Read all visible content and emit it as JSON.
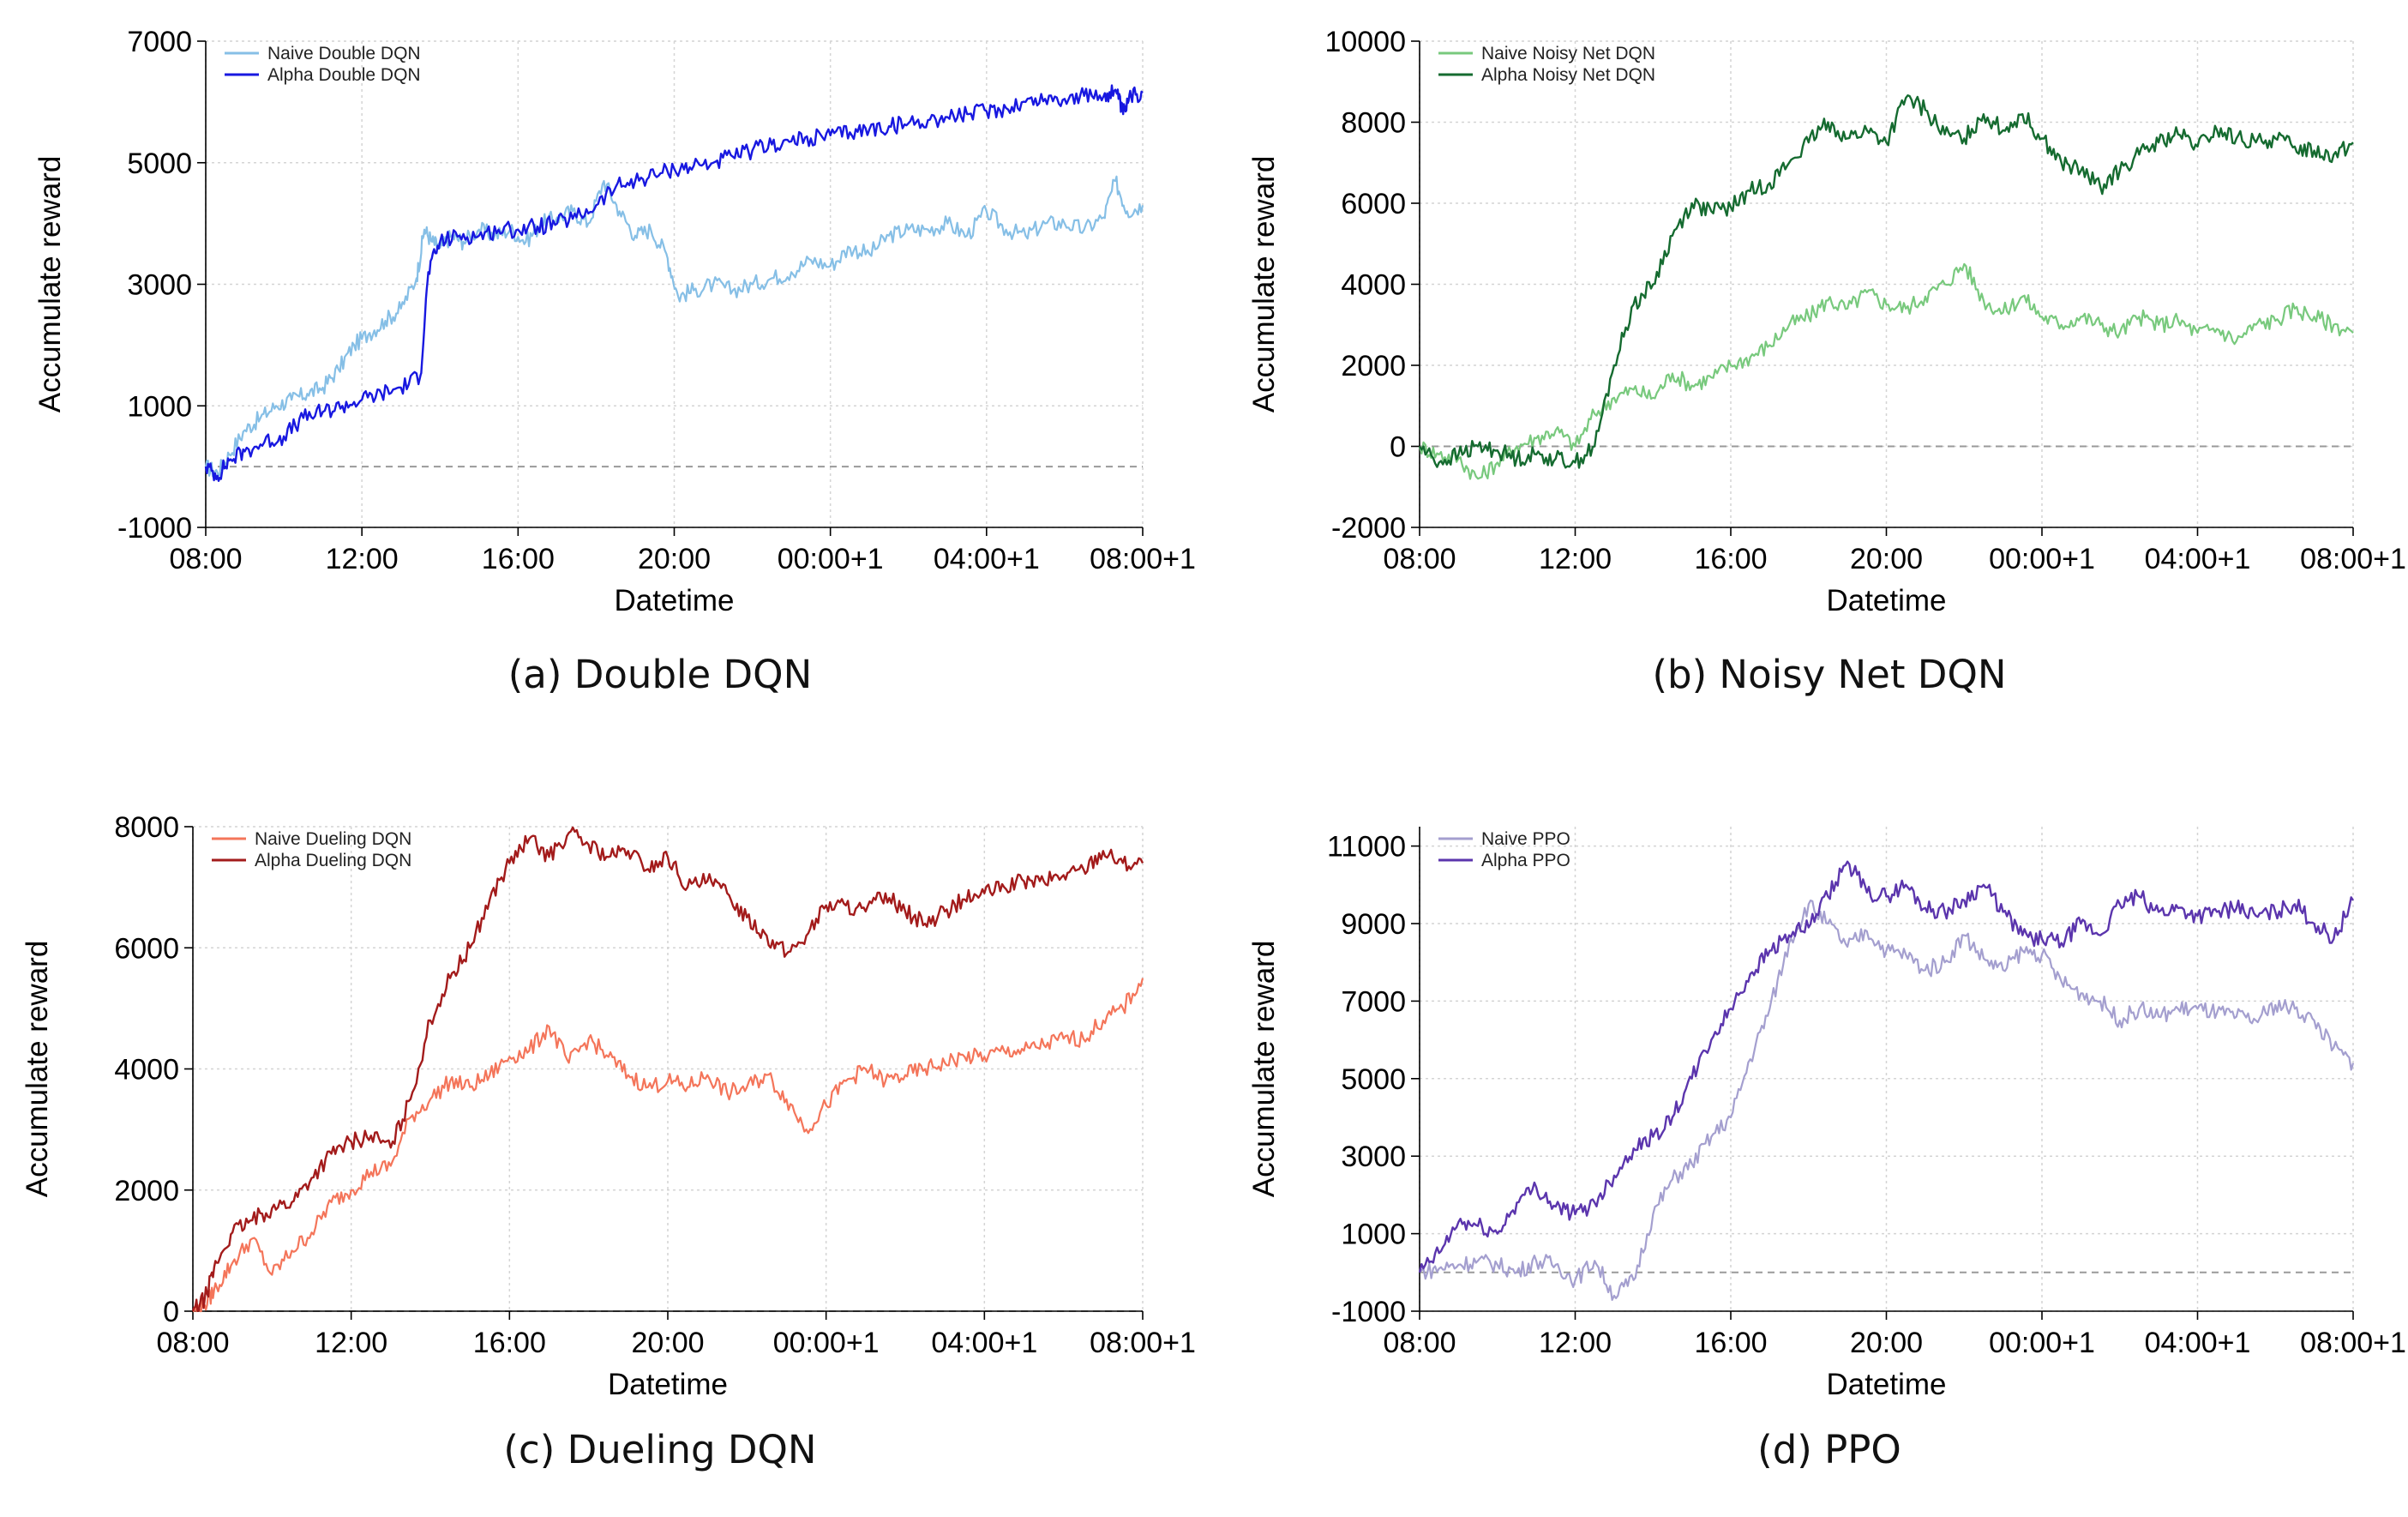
{
  "chart_data": [
    {
      "id": "a",
      "type": "line",
      "caption": "(a) Double DQN",
      "xlabel": "Datetime",
      "ylabel": "Accumulate reward",
      "xlim": [
        0,
        24
      ],
      "xticks": [
        0,
        4,
        8,
        12,
        16,
        20,
        24
      ],
      "xticklabels": [
        "08:00",
        "12:00",
        "16:00",
        "20:00",
        "00:00+1",
        "04:00+1",
        "08:00+1"
      ],
      "ylim": [
        -1000,
        7000
      ],
      "yticks": [
        -1000,
        1000,
        3000,
        5000,
        7000
      ],
      "yticklabels": [
        "-1000",
        "1000",
        "3000",
        "5000",
        "7000"
      ],
      "baseline": 0,
      "grid": true,
      "legend_position": "top-left",
      "series": [
        {
          "name": "Naive Double DQN",
          "color": "#86bfe6",
          "width": 2.2,
          "x": [
            0,
            0.3,
            0.6,
            1,
            1.4,
            1.8,
            2.2,
            2.6,
            3,
            3.4,
            3.8,
            4.2,
            4.6,
            5,
            5.4,
            5.6,
            5.8,
            6,
            6.3,
            6.6,
            7,
            7.4,
            7.8,
            8.2,
            8.6,
            9,
            9.4,
            9.8,
            10.2,
            10.6,
            11,
            11.4,
            11.8,
            12.1,
            12.5,
            13,
            13.5,
            14,
            14.5,
            15,
            15.5,
            16,
            16.5,
            17,
            17.5,
            18,
            18.5,
            19,
            19.5,
            20,
            20.5,
            21,
            21.5,
            22,
            22.5,
            23,
            23.3,
            23.6,
            24
          ],
          "y": [
            0,
            -100,
            200,
            600,
            800,
            1000,
            1100,
            1200,
            1300,
            1600,
            2000,
            2200,
            2400,
            2600,
            3100,
            3900,
            3700,
            3600,
            3800,
            3700,
            3900,
            3800,
            3900,
            3700,
            4000,
            4100,
            4200,
            4000,
            4700,
            4200,
            3800,
            3900,
            3500,
            2800,
            2900,
            3000,
            2900,
            3000,
            3100,
            3200,
            3400,
            3300,
            3600,
            3500,
            3800,
            3900,
            3900,
            4000,
            3800,
            4200,
            3900,
            3800,
            4000,
            4000,
            3900,
            4100,
            4700,
            4200,
            4300
          ]
        },
        {
          "name": "Alpha Double DQN",
          "color": "#1818e0",
          "width": 2.4,
          "x": [
            0,
            0.3,
            0.6,
            1,
            1.5,
            2,
            2.5,
            3,
            3.5,
            4,
            4.5,
            5,
            5.5,
            5.7,
            6,
            6.5,
            7,
            7.5,
            8,
            8.5,
            9,
            9.5,
            10,
            10.5,
            11,
            11.5,
            12,
            12.5,
            13,
            13.5,
            14,
            14.5,
            15,
            15.5,
            16,
            16.5,
            17,
            17.5,
            18,
            18.5,
            19,
            19.5,
            20,
            20.5,
            21,
            21.5,
            22,
            22.5,
            23,
            23.3,
            23.5,
            23.7,
            24
          ],
          "y": [
            0,
            -150,
            100,
            250,
            400,
            500,
            800,
            900,
            1000,
            1100,
            1200,
            1300,
            1500,
            3200,
            3700,
            3800,
            3800,
            3900,
            3900,
            3950,
            4000,
            4100,
            4300,
            4600,
            4700,
            4800,
            4900,
            4950,
            5000,
            5100,
            5200,
            5300,
            5350,
            5400,
            5450,
            5500,
            5550,
            5600,
            5650,
            5700,
            5750,
            5800,
            5850,
            5900,
            6000,
            6050,
            6050,
            6100,
            6100,
            6200,
            5800,
            6100,
            6150
          ]
        }
      ]
    },
    {
      "id": "b",
      "type": "line",
      "caption": "(b) Noisy Net DQN",
      "xlabel": "Datetime",
      "ylabel": "Accumulate reward",
      "xlim": [
        0,
        24
      ],
      "xticks": [
        0,
        4,
        8,
        12,
        16,
        20,
        24
      ],
      "xticklabels": [
        "08:00",
        "12:00",
        "16:00",
        "20:00",
        "00:00+1",
        "04:00+1",
        "08:00+1"
      ],
      "ylim": [
        -2000,
        10000
      ],
      "yticks": [
        -2000,
        0,
        2000,
        4000,
        6000,
        8000,
        10000
      ],
      "yticklabels": [
        "-2000",
        "0",
        "2000",
        "4000",
        "6000",
        "8000",
        "10000"
      ],
      "baseline": 0,
      "grid": true,
      "legend_position": "top-left",
      "series": [
        {
          "name": "Naive Noisy Net DQN",
          "color": "#78c97d",
          "width": 2.2,
          "x": [
            0,
            0.5,
            1,
            1.5,
            2,
            2.5,
            3,
            3.5,
            4,
            4.5,
            5,
            5.5,
            6,
            6.5,
            7,
            7.5,
            8,
            8.5,
            9,
            9.5,
            10,
            10.5,
            11,
            11.5,
            12,
            12.5,
            13,
            13.5,
            14,
            14.5,
            15,
            15.5,
            16,
            16.5,
            17,
            17.5,
            18,
            18.5,
            19,
            19.5,
            20,
            20.5,
            21,
            21.5,
            22,
            22.5,
            23,
            23.5,
            24
          ],
          "y": [
            0,
            -200,
            -300,
            -800,
            -400,
            0,
            200,
            400,
            0,
            800,
            1200,
            1400,
            1200,
            1800,
            1500,
            1700,
            2000,
            2200,
            2500,
            3000,
            3200,
            3600,
            3400,
            3800,
            3500,
            3400,
            3700,
            4000,
            4500,
            3600,
            3300,
            3700,
            3200,
            3000,
            3200,
            3000,
            2800,
            3200,
            3000,
            3100,
            2800,
            2900,
            2600,
            3000,
            3100,
            3400,
            3200,
            3000,
            2800
          ]
        },
        {
          "name": "Alpha Noisy Net DQN",
          "color": "#156b30",
          "width": 2.4,
          "x": [
            0,
            0.5,
            1,
            1.5,
            2,
            2.5,
            3,
            3.5,
            4,
            4.5,
            5,
            5.5,
            6,
            6.5,
            7,
            7.5,
            8,
            8.5,
            9,
            9.5,
            10,
            10.5,
            11,
            11.5,
            12,
            12.5,
            13,
            13.5,
            14,
            14.5,
            15,
            15.5,
            16,
            16.5,
            17,
            17.5,
            18,
            18.5,
            19,
            19.5,
            20,
            20.5,
            21,
            21.5,
            22,
            22.5,
            23,
            23.5,
            24
          ],
          "y": [
            0,
            -400,
            -200,
            0,
            -100,
            -300,
            -200,
            -300,
            -400,
            0,
            2000,
            3500,
            4000,
            5200,
            6000,
            5800,
            5900,
            6300,
            6500,
            7000,
            7500,
            8000,
            7600,
            7800,
            7500,
            8600,
            8300,
            7700,
            7600,
            8200,
            7800,
            8200,
            7600,
            7000,
            6800,
            6400,
            6800,
            7200,
            7500,
            7700,
            7400,
            7800,
            7600,
            7500,
            7600,
            7400,
            7300,
            7200,
            7500
          ]
        }
      ]
    },
    {
      "id": "c",
      "type": "line",
      "caption": "(c) Dueling DQN",
      "xlabel": "Datetime",
      "ylabel": "Accumulate reward",
      "xlim": [
        0,
        24
      ],
      "xticks": [
        0,
        4,
        8,
        12,
        16,
        20,
        24
      ],
      "xticklabels": [
        "08:00",
        "12:00",
        "16:00",
        "20:00",
        "00:00+1",
        "04:00+1",
        "08:00+1"
      ],
      "ylim": [
        0,
        8000
      ],
      "yticks": [
        0,
        2000,
        4000,
        6000,
        8000
      ],
      "yticklabels": [
        "0",
        "2000",
        "4000",
        "6000",
        "8000"
      ],
      "baseline": 0,
      "grid": true,
      "legend_position": "top-left",
      "series": [
        {
          "name": "Naive Dueling DQN",
          "color": "#f4755a",
          "width": 2.2,
          "x": [
            0,
            0.3,
            0.6,
            1,
            1.5,
            2,
            2.5,
            3,
            3.5,
            4,
            4.5,
            5,
            5.5,
            6,
            6.5,
            7,
            7.5,
            8,
            8.5,
            9,
            9.5,
            10,
            10.5,
            11,
            11.5,
            12,
            12.5,
            13,
            13.5,
            14,
            14.5,
            15,
            15.5,
            16,
            16.5,
            17,
            17.5,
            18,
            18.5,
            19,
            19.5,
            20,
            20.5,
            21,
            21.5,
            22,
            22.5,
            23,
            23.5,
            24
          ],
          "y": [
            0,
            100,
            400,
            800,
            1200,
            600,
            1000,
            1300,
            1800,
            2000,
            2300,
            2400,
            3200,
            3500,
            3800,
            3700,
            3900,
            4200,
            4300,
            4700,
            4100,
            4500,
            4200,
            3900,
            3700,
            3800,
            3700,
            3900,
            3600,
            3700,
            3900,
            3500,
            3000,
            3400,
            3800,
            4000,
            3800,
            3900,
            4000,
            4100,
            4200,
            4200,
            4300,
            4300,
            4400,
            4500,
            4500,
            4800,
            5000,
            5500
          ]
        },
        {
          "name": "Alpha Dueling DQN",
          "color": "#a31b1b",
          "width": 2.4,
          "x": [
            0,
            0.3,
            0.6,
            1,
            1.5,
            2,
            2.5,
            3,
            3.5,
            4,
            4.5,
            5,
            5.5,
            6,
            6.5,
            7,
            7.5,
            8,
            8.5,
            9,
            9.5,
            10,
            10.5,
            11,
            11.5,
            12,
            12.5,
            13,
            13.5,
            14,
            14.5,
            15,
            15.5,
            16,
            16.5,
            17,
            17.5,
            18,
            18.5,
            19,
            19.5,
            20,
            20.5,
            21,
            21.5,
            22,
            22.5,
            23,
            23.5,
            24
          ],
          "y": [
            0,
            200,
            800,
            1300,
            1500,
            1700,
            1800,
            2200,
            2600,
            2800,
            2900,
            2700,
            3500,
            4800,
            5500,
            6000,
            6800,
            7400,
            7800,
            7500,
            7900,
            7700,
            7500,
            7600,
            7300,
            7500,
            7000,
            7100,
            6900,
            6500,
            6200,
            5900,
            6200,
            6700,
            6700,
            6600,
            6900,
            6600,
            6400,
            6600,
            6800,
            6900,
            7000,
            7100,
            7100,
            7200,
            7300,
            7600,
            7400,
            7400
          ]
        }
      ]
    },
    {
      "id": "d",
      "type": "line",
      "caption": "(d) PPO",
      "xlabel": "Datetime",
      "ylabel": "Accumulate reward",
      "xlim": [
        0,
        24
      ],
      "xticks": [
        0,
        4,
        8,
        12,
        16,
        20,
        24
      ],
      "xticklabels": [
        "08:00",
        "12:00",
        "16:00",
        "20:00",
        "00:00+1",
        "04:00+1",
        "08:00+1"
      ],
      "ylim": [
        -1000,
        11500
      ],
      "yticks": [
        -1000,
        1000,
        3000,
        5000,
        7000,
        9000,
        11000
      ],
      "yticklabels": [
        "-1000",
        "1000",
        "3000",
        "5000",
        "7000",
        "9000",
        "11000"
      ],
      "baseline": 0,
      "grid": true,
      "legend_position": "top-left",
      "series": [
        {
          "name": "Naive PPO",
          "color": "#a49fcf",
          "width": 2.2,
          "x": [
            0,
            0.5,
            1,
            1.5,
            2,
            2.5,
            3,
            3.5,
            4,
            4.5,
            5,
            5.5,
            6,
            6.5,
            7,
            7.5,
            8,
            8.5,
            9,
            9.5,
            10,
            10.5,
            11,
            11.5,
            12,
            12.5,
            13,
            13.5,
            14,
            14.5,
            15,
            15.5,
            16,
            16.5,
            17,
            17.5,
            18,
            18.5,
            19,
            19.5,
            20,
            20.5,
            21,
            21.5,
            22,
            22.5,
            23,
            23.5,
            24
          ],
          "y": [
            0,
            100,
            200,
            300,
            200,
            0,
            300,
            200,
            -200,
            300,
            -600,
            -200,
            1500,
            2400,
            2800,
            3500,
            4000,
            5500,
            6800,
            8500,
            9500,
            9000,
            8400,
            8800,
            8300,
            8200,
            7800,
            8000,
            8700,
            8100,
            7800,
            8300,
            8200,
            7500,
            7200,
            7000,
            6500,
            6800,
            6600,
            6800,
            6800,
            6700,
            6600,
            6500,
            6900,
            6800,
            6500,
            5800,
            5400
          ]
        },
        {
          "name": "Alpha PPO",
          "color": "#5b35ad",
          "width": 2.4,
          "x": [
            0,
            0.5,
            1,
            1.5,
            2,
            2.5,
            3,
            3.5,
            4,
            4.5,
            5,
            5.5,
            6,
            6.5,
            7,
            7.5,
            8,
            8.5,
            9,
            9.5,
            10,
            10.5,
            11,
            11.5,
            12,
            12.5,
            13,
            13.5,
            14,
            14.5,
            15,
            15.5,
            16,
            16.5,
            17,
            17.5,
            18,
            18.5,
            19,
            19.5,
            20,
            20.5,
            21,
            21.5,
            22,
            22.5,
            23,
            23.5,
            24
          ],
          "y": [
            0,
            500,
            1300,
            1200,
            1000,
            1800,
            2200,
            1700,
            1500,
            1800,
            2500,
            3200,
            3500,
            4000,
            5000,
            6000,
            6800,
            7700,
            8300,
            8700,
            8900,
            9700,
            10600,
            9800,
            9700,
            10000,
            9400,
            9300,
            9600,
            10000,
            9300,
            8700,
            8600,
            8500,
            9000,
            8700,
            9500,
            9700,
            9300,
            9400,
            9200,
            9300,
            9400,
            9200,
            9300,
            9500,
            9000,
            8600,
            9600
          ]
        }
      ]
    }
  ]
}
